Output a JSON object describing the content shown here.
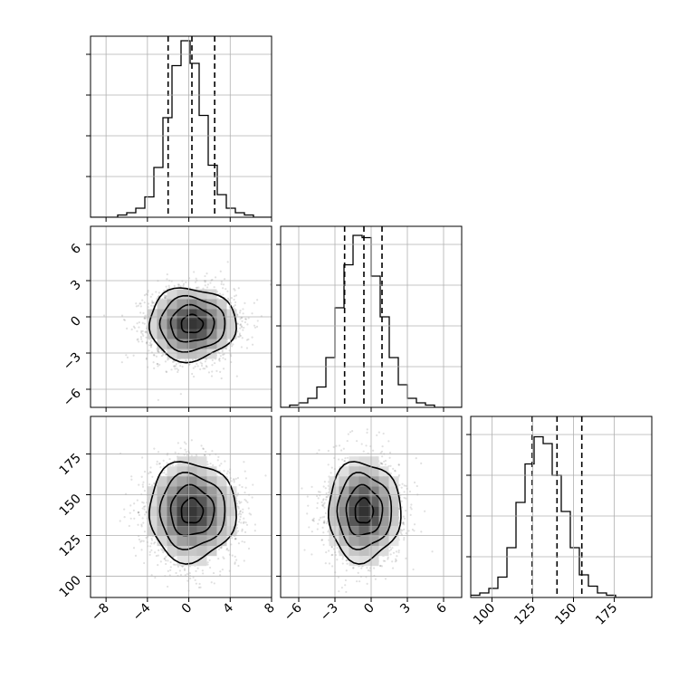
{
  "chart_data": {
    "type": "corner",
    "variables": [
      {
        "range": [
          -9.5,
          8
        ],
        "ticks": [
          -8,
          -4,
          0,
          4,
          8
        ],
        "tick_labels": [
          "−8",
          "−4",
          "0",
          "4",
          "8"
        ],
        "quantiles": [
          -2.0,
          0.3,
          2.5
        ],
        "hist_edges_start": -9.5,
        "hist_bin_width": 0.875,
        "hist_counts": [
          0,
          0,
          0,
          1,
          2,
          4,
          9,
          22,
          44,
          67,
          78,
          68,
          45,
          23,
          10,
          4,
          2,
          1,
          0,
          0
        ]
      },
      {
        "range": [
          -7.5,
          7.5
        ],
        "ticks": [
          -6,
          -3,
          0,
          3,
          6
        ],
        "tick_labels": [
          "−6",
          "−3",
          "0",
          "3",
          "6"
        ],
        "quantiles": [
          -2.2,
          -0.6,
          0.9
        ],
        "hist_edges_start": -7.5,
        "hist_bin_width": 0.75,
        "hist_counts": [
          0,
          1,
          2,
          4,
          9,
          22,
          44,
          63,
          76,
          75,
          58,
          40,
          22,
          10,
          4,
          2,
          1,
          0,
          0,
          0
        ]
      },
      {
        "range": [
          87,
          198
        ],
        "ticks": [
          100,
          125,
          150,
          175
        ],
        "tick_labels": [
          "100",
          "125",
          "150",
          "175"
        ],
        "quantiles": [
          124.7,
          139.9,
          155.1
        ],
        "hist_edges_start": 87,
        "hist_bin_width": 5.55,
        "hist_counts": [
          1,
          2,
          4,
          9,
          22,
          42,
          59,
          71,
          68,
          54,
          38,
          22,
          10,
          5,
          2,
          1,
          0,
          0,
          0,
          0
        ]
      }
    ],
    "hist_ymax": [
      80,
      80,
      80
    ],
    "pairs": [
      {
        "row": 1,
        "col": 0,
        "center": [
          0.3,
          -0.6
        ],
        "sd": [
          2.1,
          1.5
        ]
      },
      {
        "row": 2,
        "col": 0,
        "center": [
          0.3,
          139.9
        ],
        "sd": [
          2.1,
          15.2
        ]
      },
      {
        "row": 2,
        "col": 1,
        "center": [
          -0.6,
          139.9
        ],
        "sd": [
          1.5,
          15.2
        ]
      }
    ],
    "contour_levels_sigma": [
      0.5,
      1.0,
      1.5,
      2.0
    ],
    "grid": true,
    "linestyle_quantiles": "dashed"
  }
}
